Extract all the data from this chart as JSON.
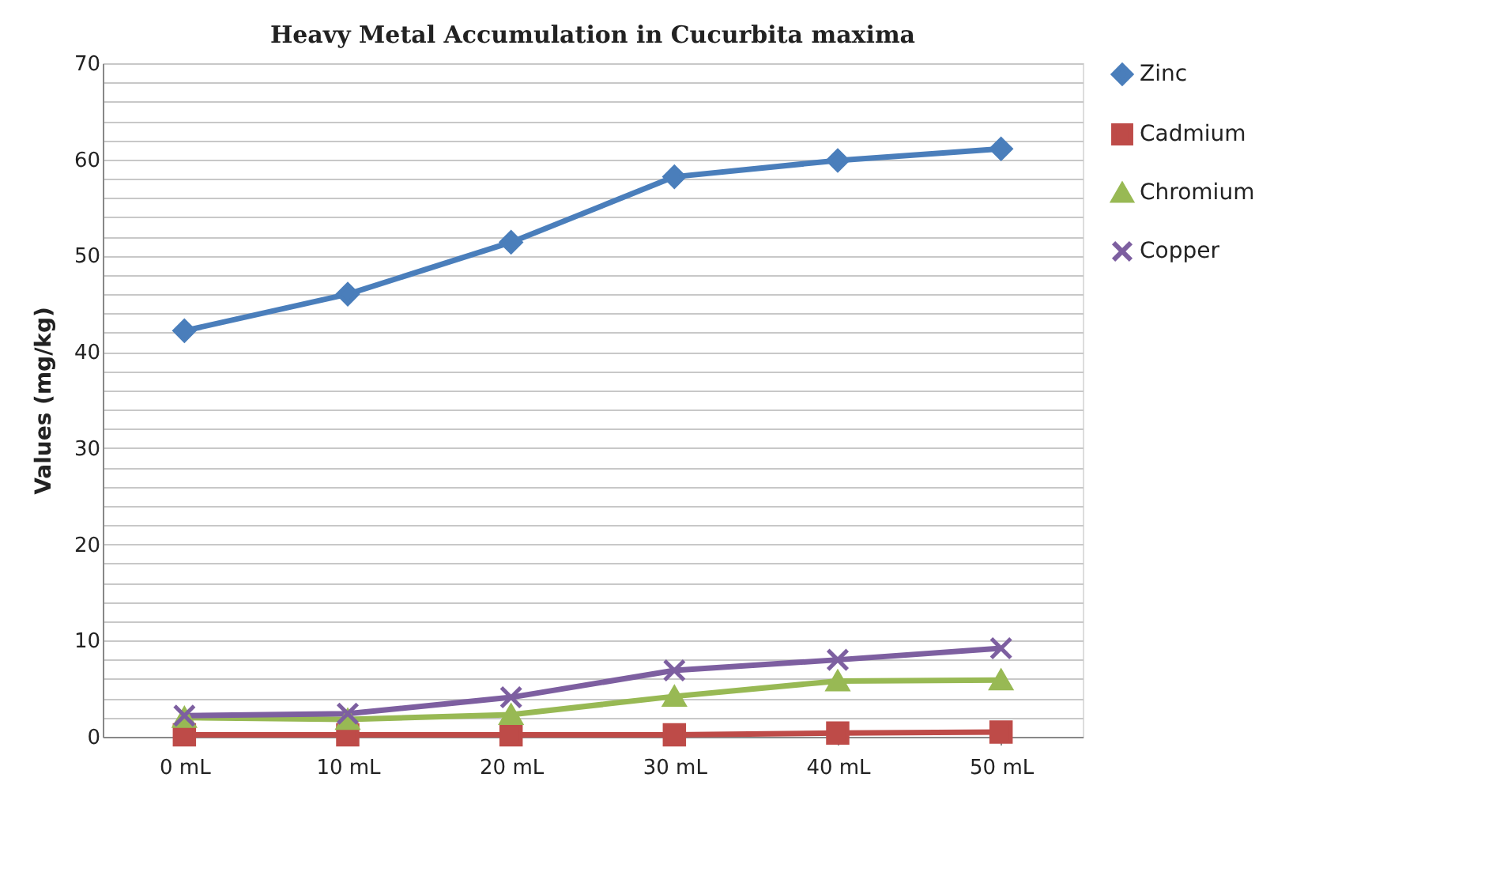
{
  "chart_data": {
    "type": "line",
    "title": "Heavy Metal Accumulation in Cucurbita maxima",
    "ylabel": "Values (mg/kg)",
    "categories": [
      "0 mL",
      "10 mL",
      "20 mL",
      "30 mL",
      "40 mL",
      "50 mL"
    ],
    "series": [
      {
        "name": "Zinc",
        "color": "#4a7ebb",
        "marker": "diamond",
        "values": [
          42.2,
          46,
          51.4,
          58.2,
          59.9,
          61.1
        ]
      },
      {
        "name": "Cadmium",
        "color": "#be4b48",
        "marker": "square",
        "values": [
          0.2,
          0.2,
          0.2,
          0.2,
          0.4,
          0.5
        ]
      },
      {
        "name": "Chromium",
        "color": "#98b954",
        "marker": "triangle",
        "values": [
          2,
          1.8,
          2.3,
          4.2,
          5.8,
          5.9
        ]
      },
      {
        "name": "Copper",
        "color": "#7d5fa0",
        "marker": "cross",
        "values": [
          2.2,
          2.4,
          4.1,
          6.9,
          8,
          9.2
        ]
      }
    ],
    "ylim": [
      0,
      70
    ],
    "yticks": [
      0,
      {
        "value": 2,
        "label": null
      },
      {
        "value": 4,
        "label": null
      },
      {
        "value": 6,
        "label": null
      },
      {
        "value": 8,
        "label": null
      },
      10,
      {
        "value": 12,
        "label": null
      },
      {
        "value": 14,
        "label": null
      },
      {
        "value": 16,
        "label": null
      },
      {
        "value": 18,
        "label": null
      },
      20,
      {
        "value": 22,
        "label": null
      },
      {
        "value": 24,
        "label": null
      },
      {
        "value": 26,
        "label": null
      },
      {
        "value": 28,
        "label": null
      },
      30,
      {
        "value": 32,
        "label": null
      },
      {
        "value": 34,
        "label": null
      },
      {
        "value": 36,
        "label": null
      },
      {
        "value": 38,
        "label": null
      },
      40,
      {
        "value": 42,
        "label": null
      },
      {
        "value": 44,
        "label": null
      },
      {
        "value": 46,
        "label": null
      },
      {
        "value": 48,
        "label": null
      },
      50,
      {
        "value": 52,
        "label": null
      },
      {
        "value": 54,
        "label": null
      },
      {
        "value": 56,
        "label": null
      },
      {
        "value": 58,
        "label": null
      },
      60,
      {
        "value": 62,
        "label": null
      },
      {
        "value": 64,
        "label": null
      },
      {
        "value": 66,
        "label": null
      },
      {
        "value": 68,
        "label": null
      },
      70
    ],
    "grid": "y",
    "legend": "right",
    "line_style": "solid"
  }
}
